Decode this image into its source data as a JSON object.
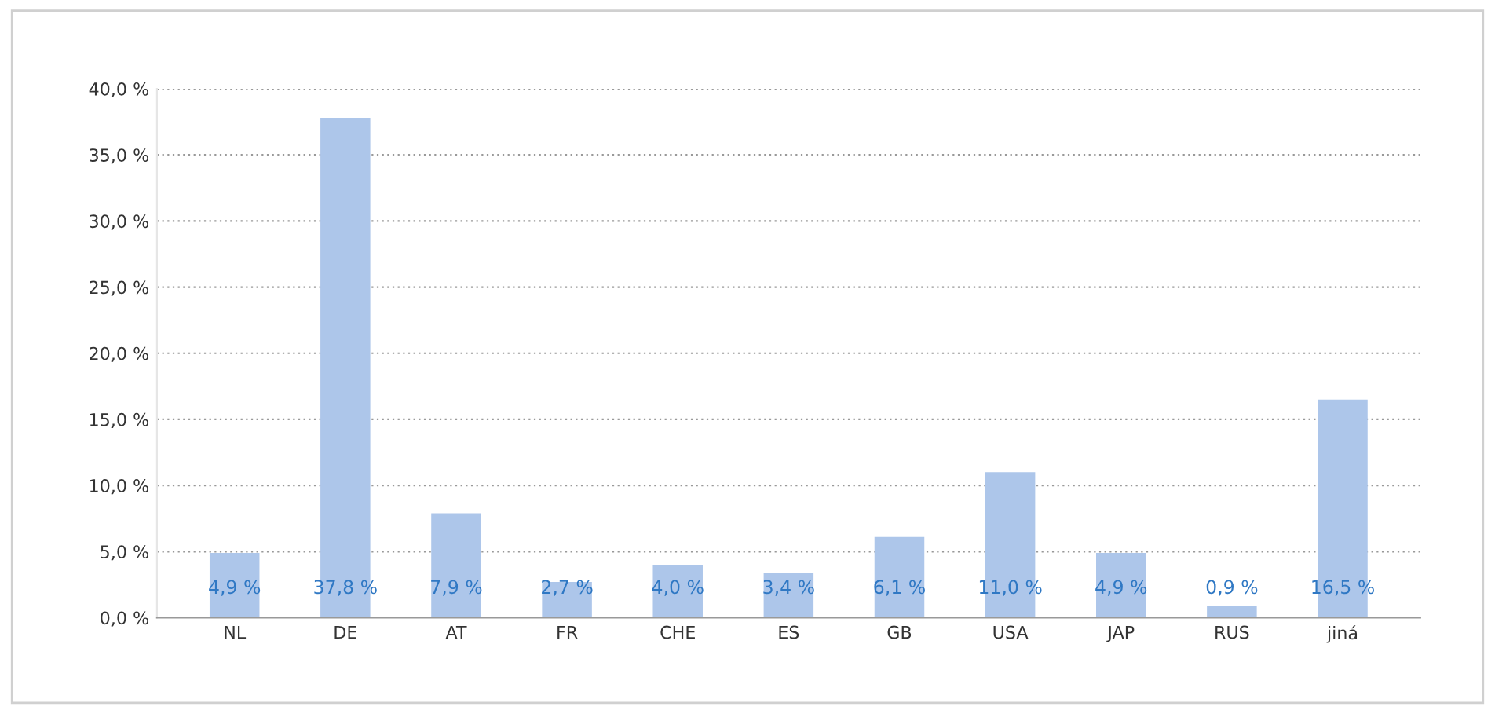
{
  "chart_data": {
    "type": "bar",
    "categories": [
      "NL",
      "DE",
      "AT",
      "FR",
      "CHE",
      "ES",
      "GB",
      "USA",
      "JAP",
      "RUS",
      "jiná"
    ],
    "values": [
      4.9,
      37.8,
      7.9,
      2.7,
      4.0,
      3.4,
      6.1,
      11.0,
      4.9,
      0.9,
      16.5
    ],
    "value_labels": [
      "4,9 %",
      "37,8 %",
      "7,9 %",
      "2,7 %",
      "4,0 %",
      "3,4 %",
      "6,1 %",
      "11,0 %",
      "4,9 %",
      "0,9 %",
      "16,5 %"
    ],
    "color": "#adc6ea",
    "ylim": [
      0,
      40
    ],
    "yticks": [
      {
        "value": 0,
        "label": "0,0 %"
      },
      {
        "value": 5,
        "label": "5,0 %"
      },
      {
        "value": 10,
        "label": "10,0 %"
      },
      {
        "value": 15,
        "label": "15,0 %"
      },
      {
        "value": 20,
        "label": "20,0 %"
      },
      {
        "value": 25,
        "label": "25,0 %"
      },
      {
        "value": 30,
        "label": "30,0 %"
      },
      {
        "value": 35,
        "label": "35,0 %"
      },
      {
        "value": 40,
        "label": "40,0 %"
      }
    ],
    "grid": "y"
  }
}
